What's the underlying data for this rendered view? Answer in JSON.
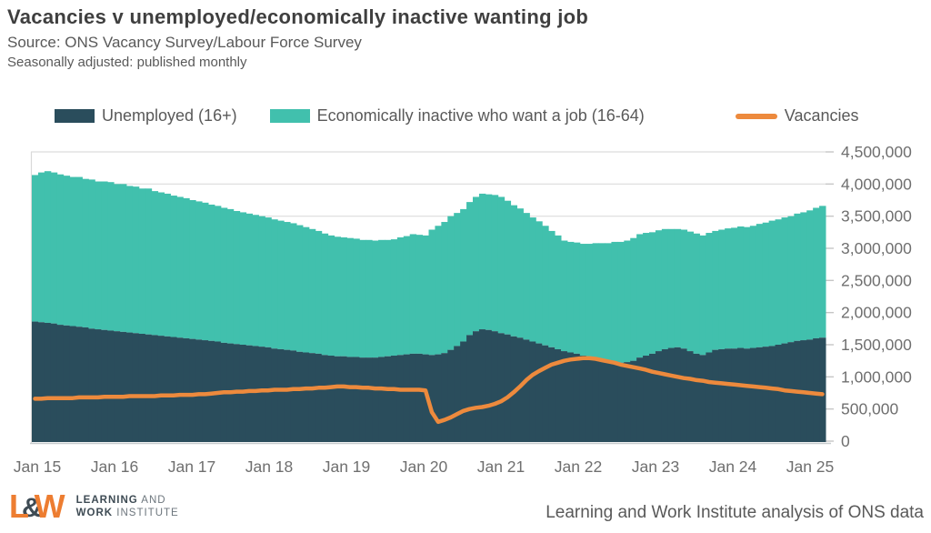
{
  "header": {
    "title": "Vacancies v unemployed/economically inactive wanting job",
    "subtitle": "Source: ONS Vacancy Survey/Labour Force Survey",
    "note": "Seasonally adjusted: published monthly"
  },
  "legend": [
    {
      "label": "Unemployed (16+)",
      "color": "#2a4d5c",
      "swatch": "box"
    },
    {
      "label": "Economically inactive who want a job (16-64)",
      "color": "#41c0ad",
      "swatch": "box"
    },
    {
      "label": "Vacancies",
      "color": "#ed8a3d",
      "swatch": "line"
    }
  ],
  "footer": {
    "logo": {
      "l": "L",
      "amp": "&",
      "w": "W",
      "line1_bold": "LEARNING",
      "line1_rest": " AND",
      "line2_bold": "WORK",
      "line2_rest": " INSTITUTE"
    },
    "credit": "Learning and Work Institute analysis of ONS data"
  },
  "chart_data": {
    "type": "bar",
    "stacked": true,
    "frequency": "monthly",
    "x_start": "Jan 2015",
    "x_end": "Jun 2025",
    "x_tick_labels": [
      "Jan 15",
      "Jan 16",
      "Jan 17",
      "Jan 18",
      "Jan 19",
      "Jan 20",
      "Jan 21",
      "Jan 22",
      "Jan 23",
      "Jan 24",
      "Jan 25"
    ],
    "y_tick_labels": [
      "0",
      "500,000",
      "1,000,000",
      "1,500,000",
      "2,000,000",
      "2,500,000",
      "3,000,000",
      "3,500,000",
      "4,000,000",
      "4,500,000"
    ],
    "ylim_millions": [
      0,
      4.5
    ],
    "grid": "horizontal",
    "legend_position": "top",
    "series": [
      {
        "name": "Unemployed (16+)",
        "render": "bar-stack",
        "color": "#2a4d5c",
        "values_millions": [
          1.86,
          1.85,
          1.84,
          1.83,
          1.81,
          1.8,
          1.79,
          1.78,
          1.77,
          1.75,
          1.74,
          1.73,
          1.72,
          1.71,
          1.7,
          1.69,
          1.68,
          1.67,
          1.66,
          1.65,
          1.64,
          1.63,
          1.62,
          1.61,
          1.6,
          1.59,
          1.58,
          1.57,
          1.56,
          1.55,
          1.53,
          1.52,
          1.51,
          1.5,
          1.49,
          1.48,
          1.47,
          1.46,
          1.44,
          1.43,
          1.42,
          1.41,
          1.39,
          1.38,
          1.37,
          1.36,
          1.34,
          1.33,
          1.32,
          1.32,
          1.31,
          1.31,
          1.3,
          1.3,
          1.3,
          1.31,
          1.32,
          1.33,
          1.34,
          1.35,
          1.36,
          1.36,
          1.35,
          1.34,
          1.35,
          1.37,
          1.42,
          1.48,
          1.55,
          1.65,
          1.71,
          1.74,
          1.73,
          1.71,
          1.68,
          1.66,
          1.63,
          1.61,
          1.58,
          1.55,
          1.52,
          1.49,
          1.46,
          1.43,
          1.4,
          1.38,
          1.36,
          1.33,
          1.31,
          1.29,
          1.27,
          1.25,
          1.24,
          1.22,
          1.23,
          1.25,
          1.3,
          1.33,
          1.36,
          1.4,
          1.43,
          1.45,
          1.46,
          1.44,
          1.4,
          1.36,
          1.34,
          1.38,
          1.42,
          1.43,
          1.44,
          1.44,
          1.45,
          1.44,
          1.45,
          1.46,
          1.47,
          1.48,
          1.5,
          1.52,
          1.54,
          1.56,
          1.57,
          1.58,
          1.6,
          1.61
        ]
      },
      {
        "name": "Economically inactive who want a job (16-64)",
        "render": "bar-stack",
        "color": "#41c0ad",
        "values_millions": [
          2.28,
          2.33,
          2.36,
          2.35,
          2.34,
          2.33,
          2.32,
          2.33,
          2.31,
          2.32,
          2.3,
          2.31,
          2.31,
          2.29,
          2.3,
          2.28,
          2.28,
          2.26,
          2.27,
          2.24,
          2.23,
          2.22,
          2.2,
          2.19,
          2.18,
          2.16,
          2.15,
          2.14,
          2.12,
          2.11,
          2.1,
          2.09,
          2.07,
          2.06,
          2.05,
          2.04,
          2.03,
          2.02,
          2.01,
          2.0,
          1.99,
          1.98,
          1.97,
          1.95,
          1.93,
          1.91,
          1.89,
          1.87,
          1.86,
          1.85,
          1.85,
          1.84,
          1.83,
          1.83,
          1.82,
          1.82,
          1.81,
          1.81,
          1.83,
          1.84,
          1.86,
          1.85,
          1.85,
          1.95,
          2.0,
          2.04,
          2.08,
          2.07,
          2.06,
          2.07,
          2.09,
          2.11,
          2.11,
          2.12,
          2.12,
          2.08,
          2.04,
          2.01,
          1.97,
          1.93,
          1.9,
          1.86,
          1.81,
          1.77,
          1.72,
          1.72,
          1.73,
          1.74,
          1.76,
          1.79,
          1.81,
          1.83,
          1.86,
          1.88,
          1.89,
          1.91,
          1.92,
          1.91,
          1.89,
          1.88,
          1.87,
          1.85,
          1.84,
          1.85,
          1.86,
          1.87,
          1.86,
          1.86,
          1.85,
          1.86,
          1.87,
          1.88,
          1.89,
          1.89,
          1.9,
          1.92,
          1.93,
          1.95,
          1.95,
          1.96,
          1.96,
          1.98,
          1.99,
          2.01,
          2.03,
          2.05
        ]
      },
      {
        "name": "Vacancies",
        "render": "line",
        "color": "#ed8a3d",
        "values_millions": [
          0.66,
          0.66,
          0.67,
          0.67,
          0.67,
          0.67,
          0.67,
          0.68,
          0.68,
          0.68,
          0.68,
          0.69,
          0.69,
          0.69,
          0.69,
          0.7,
          0.7,
          0.7,
          0.7,
          0.7,
          0.71,
          0.71,
          0.71,
          0.72,
          0.72,
          0.72,
          0.73,
          0.73,
          0.74,
          0.75,
          0.76,
          0.76,
          0.77,
          0.77,
          0.78,
          0.78,
          0.79,
          0.79,
          0.8,
          0.8,
          0.8,
          0.81,
          0.81,
          0.82,
          0.82,
          0.83,
          0.83,
          0.84,
          0.85,
          0.85,
          0.84,
          0.84,
          0.83,
          0.83,
          0.82,
          0.82,
          0.81,
          0.81,
          0.8,
          0.8,
          0.8,
          0.8,
          0.79,
          0.45,
          0.3,
          0.33,
          0.37,
          0.42,
          0.47,
          0.5,
          0.52,
          0.53,
          0.55,
          0.58,
          0.62,
          0.68,
          0.76,
          0.85,
          0.95,
          1.03,
          1.09,
          1.14,
          1.19,
          1.22,
          1.25,
          1.27,
          1.28,
          1.29,
          1.29,
          1.28,
          1.26,
          1.24,
          1.22,
          1.19,
          1.17,
          1.15,
          1.13,
          1.11,
          1.08,
          1.06,
          1.04,
          1.02,
          1.0,
          0.98,
          0.97,
          0.95,
          0.94,
          0.92,
          0.91,
          0.9,
          0.89,
          0.88,
          0.87,
          0.86,
          0.85,
          0.84,
          0.83,
          0.82,
          0.81,
          0.79,
          0.78,
          0.77,
          0.76,
          0.75,
          0.74,
          0.73
        ]
      }
    ]
  }
}
